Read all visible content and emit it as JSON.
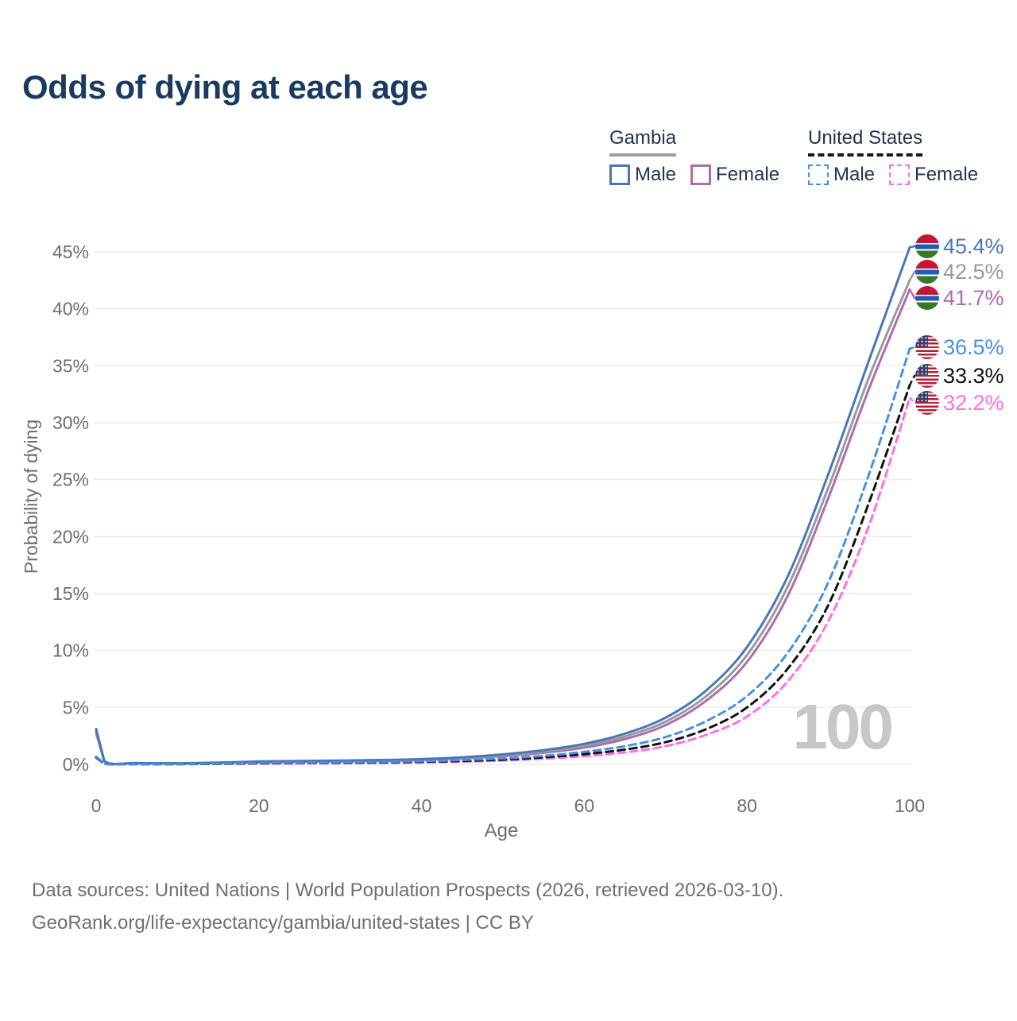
{
  "title": "Odds of dying at each age",
  "legend": {
    "groups": [
      {
        "name": "Gambia",
        "line_style": "solid",
        "underline_color": "#9e9e9e",
        "items": [
          {
            "label": "Male",
            "color": "#4a77b4"
          },
          {
            "label": "Female",
            "color": "#ad6cb0"
          }
        ]
      },
      {
        "name": "United States",
        "line_style": "dashed",
        "underline_color": "#1a1a1a",
        "items": [
          {
            "label": "Male",
            "color": "#4a90e2"
          },
          {
            "label": "Female",
            "color": "#ff6fe8"
          }
        ]
      }
    ]
  },
  "chart_data": {
    "type": "line",
    "title": "Odds of dying at each age",
    "xlabel": "Age",
    "ylabel": "Probability of dying",
    "xlim": [
      0,
      100
    ],
    "ylim_percent": [
      0,
      45
    ],
    "x_ticks": [
      0,
      20,
      40,
      60,
      80,
      100
    ],
    "y_ticks_percent": [
      0,
      5,
      10,
      15,
      20,
      25,
      30,
      35,
      40,
      45
    ],
    "grid": "horizontal",
    "legend_position": "top-right",
    "age_watermark": "100",
    "ages": [
      0,
      1,
      5,
      10,
      15,
      20,
      25,
      30,
      35,
      40,
      45,
      50,
      55,
      60,
      65,
      70,
      75,
      80,
      85,
      90,
      95,
      100
    ],
    "series": [
      {
        "name": "Gambia Male",
        "country": "Gambia",
        "sex": "Male",
        "color": "#4a77b4",
        "dash": "solid",
        "flag": "gambia",
        "end_label": "45.4%",
        "values_percent": [
          3.1,
          0.3,
          0.12,
          0.1,
          0.16,
          0.25,
          0.3,
          0.33,
          0.38,
          0.46,
          0.62,
          0.88,
          1.25,
          1.8,
          2.7,
          4.1,
          6.5,
          10.3,
          16.5,
          25.5,
          35.5,
          45.4
        ]
      },
      {
        "name": "Gambia",
        "country": "Gambia",
        "sex": "Both",
        "color": "#9a9a9a",
        "dash": "solid",
        "flag": "gambia",
        "end_label": "42.5%",
        "values_percent": [
          2.95,
          0.28,
          0.11,
          0.09,
          0.14,
          0.21,
          0.26,
          0.29,
          0.34,
          0.42,
          0.57,
          0.8,
          1.13,
          1.63,
          2.45,
          3.75,
          6.0,
          9.6,
          15.6,
          24.3,
          34.0,
          42.5
        ]
      },
      {
        "name": "Gambia Female",
        "country": "Gambia",
        "sex": "Female",
        "color": "#ad6cb0",
        "dash": "solid",
        "flag": "gambia",
        "end_label": "41.7%",
        "values_percent": [
          2.75,
          0.27,
          0.1,
          0.08,
          0.12,
          0.17,
          0.22,
          0.26,
          0.31,
          0.38,
          0.52,
          0.72,
          1.02,
          1.47,
          2.22,
          3.45,
          5.6,
          9.0,
          14.8,
          23.4,
          33.0,
          41.7
        ]
      },
      {
        "name": "United States Male",
        "country": "United States",
        "sex": "Male",
        "color": "#4a90e2",
        "dash": "dashed",
        "flag": "us",
        "end_label": "36.5%",
        "values_percent": [
          0.68,
          0.05,
          0.02,
          0.03,
          0.07,
          0.12,
          0.15,
          0.18,
          0.22,
          0.28,
          0.38,
          0.52,
          0.75,
          1.1,
          1.6,
          2.4,
          3.8,
          6.0,
          9.8,
          16.0,
          25.5,
          36.5
        ]
      },
      {
        "name": "United States",
        "country": "United States",
        "sex": "Both",
        "color": "#111111",
        "dash": "dashed",
        "flag": "us",
        "end_label": "33.3%",
        "values_percent": [
          0.62,
          0.05,
          0.02,
          0.02,
          0.05,
          0.09,
          0.12,
          0.14,
          0.17,
          0.22,
          0.3,
          0.42,
          0.62,
          0.9,
          1.3,
          1.95,
          3.1,
          5.0,
          8.4,
          14.0,
          23.0,
          33.3
        ]
      },
      {
        "name": "United States Female",
        "country": "United States",
        "sex": "Female",
        "color": "#ff6fe8",
        "dash": "dashed",
        "flag": "us",
        "end_label": "32.2%",
        "values_percent": [
          0.56,
          0.04,
          0.02,
          0.02,
          0.04,
          0.06,
          0.08,
          0.1,
          0.13,
          0.17,
          0.24,
          0.34,
          0.5,
          0.72,
          1.05,
          1.6,
          2.6,
          4.2,
          7.3,
          12.6,
          21.0,
          32.2
        ]
      }
    ]
  },
  "footer": {
    "line1": "Data sources: United Nations | World Population Prospects (2026, retrieved 2026-03-10).",
    "line2": "GeoRank.org/life-expectancy/gambia/united-states | CC BY"
  }
}
